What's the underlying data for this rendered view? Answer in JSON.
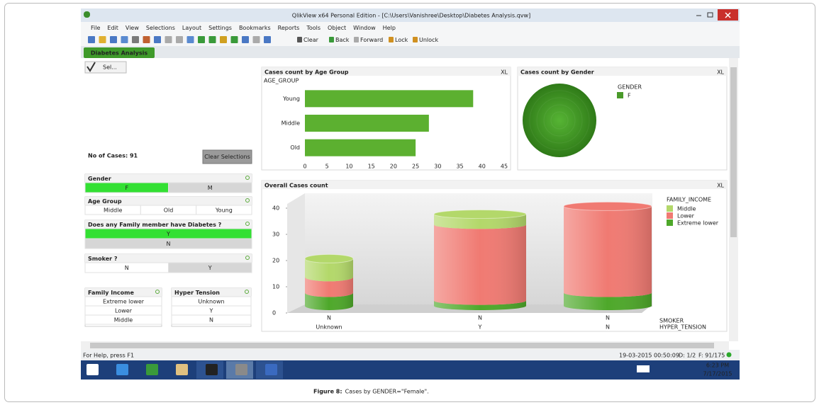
{
  "window": {
    "title": "QlikView x64 Personal Edition - [C:\\Users\\Vanishree\\Desktop\\Diabetes Analysis.qvw]",
    "menu": [
      "File",
      "Edit",
      "View",
      "Selections",
      "Layout",
      "Settings",
      "Bookmarks",
      "Reports",
      "Tools",
      "Object",
      "Window",
      "Help"
    ],
    "toolbar": [
      "Clear",
      "Back",
      "Forward",
      "Lock",
      "Unlock"
    ],
    "tab": "Diabetes Analysis"
  },
  "sheet": {
    "select_button": "Sel...",
    "cases_label": "No of Cases: 91",
    "clear_button": "Clear Selections",
    "listboxes": [
      {
        "title": "Gender",
        "items": [
          {
            "text": "F",
            "state": "selected"
          },
          {
            "text": "M",
            "state": "excluded"
          }
        ]
      },
      {
        "title": "Age Group",
        "items": [
          {
            "text": "Middle",
            "state": "optional"
          },
          {
            "text": "Old",
            "state": "optional"
          },
          {
            "text": "Young",
            "state": "optional"
          }
        ]
      },
      {
        "title": "Does any Family member have Diabetes ?",
        "items": [
          {
            "text": "Y",
            "state": "selected"
          },
          {
            "text": "N",
            "state": "excluded"
          }
        ]
      },
      {
        "title": "Smoker ?",
        "items": [
          {
            "text": "N",
            "state": "optional"
          },
          {
            "text": "Y",
            "state": "excluded"
          }
        ]
      },
      {
        "title": "Family Income",
        "items": [
          {
            "text": "Extreme lower",
            "state": "optional"
          },
          {
            "text": "Lower",
            "state": "optional"
          },
          {
            "text": "Middle",
            "state": "optional"
          }
        ]
      },
      {
        "title": "Hyper Tension",
        "items": [
          {
            "text": "Unknown",
            "state": "optional"
          },
          {
            "text": "Y",
            "state": "optional"
          },
          {
            "text": "N",
            "state": "optional"
          }
        ]
      }
    ]
  },
  "chart_data": [
    {
      "type": "bar",
      "orientation": "horizontal",
      "title": "Cases count by Age Group",
      "export_icon": "XL",
      "ylabel": "AGE_GROUP",
      "categories": [
        "Young",
        "Middle",
        "Old"
      ],
      "values": [
        38,
        28,
        25
      ],
      "color": "#5cb030",
      "xlim": [
        0,
        45
      ],
      "xticks": [
        0,
        5,
        10,
        15,
        20,
        25,
        30,
        35,
        40,
        45
      ]
    },
    {
      "type": "pie",
      "title": "Cases count by Gender",
      "export_icon": "XL",
      "legend_title": "GENDER",
      "categories": [
        "F"
      ],
      "values": [
        91
      ],
      "colors": [
        "#4a9a2a"
      ]
    },
    {
      "type": "cylinder",
      "stacked": true,
      "title": "Overall Cases count",
      "export_icon": "XL",
      "categories": [
        [
          "N",
          "Unknown"
        ],
        [
          "N",
          "Y"
        ],
        [
          "N",
          "N"
        ]
      ],
      "xlabels": [
        "SMOKER",
        "HYPER_TENSION"
      ],
      "legend_title": "FAMILY_INCOME",
      "legend": "right",
      "series": [
        {
          "name": "Middle",
          "color": "#b3d86a",
          "values": [
            7,
            4,
            0
          ]
        },
        {
          "name": "Lower",
          "color": "#f07a72",
          "values": [
            6,
            29,
            33
          ]
        },
        {
          "name": "Extreme lower",
          "color": "#4ea82a",
          "values": [
            5,
            2,
            5
          ]
        }
      ],
      "ylim": [
        0,
        40
      ],
      "yticks": [
        0,
        10,
        20,
        30,
        40
      ]
    }
  ],
  "status": {
    "help": "For Help, press F1",
    "timestamp": "19-03-2015 00:50:09",
    "dimensions": "D: 1/2",
    "fields": "F: 91/175"
  },
  "taskbar": {
    "time": "6:23 PM",
    "date": "7/17/2015"
  },
  "caption": {
    "label": "Figure 8:",
    "text": "Cases by GENDER=\"Female\"."
  }
}
